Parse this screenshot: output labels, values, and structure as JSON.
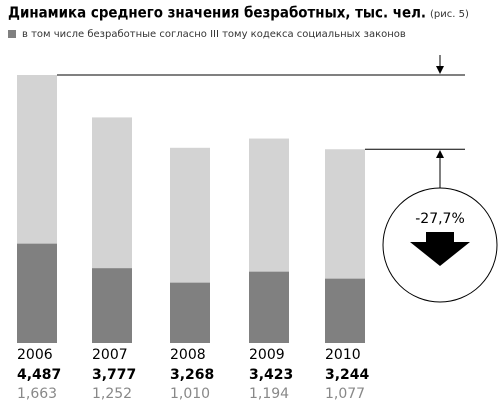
{
  "chart_data": {
    "type": "bar",
    "title": "Динамика среднего значения безработных, тыс. чел.",
    "subtitle": "(рис. 5)",
    "categories": [
      "2006",
      "2007",
      "2008",
      "2009",
      "2010"
    ],
    "series": [
      {
        "color": "#d3d3d3",
        "values": [
          4487,
          3777,
          3268,
          3423,
          3244
        ],
        "value_labels": [
          "4,487",
          "3,777",
          "3,268",
          "3,423",
          "3,244"
        ]
      },
      {
        "name": "в том числе безработные согласно III тому кодекса социальных законов",
        "color": "#808080",
        "values": [
          1663,
          1252,
          1010,
          1194,
          1077
        ],
        "value_labels": [
          "1,663",
          "1,252",
          "1,010",
          "1,194",
          "1,077"
        ]
      }
    ],
    "annotation": "-27,7%"
  }
}
